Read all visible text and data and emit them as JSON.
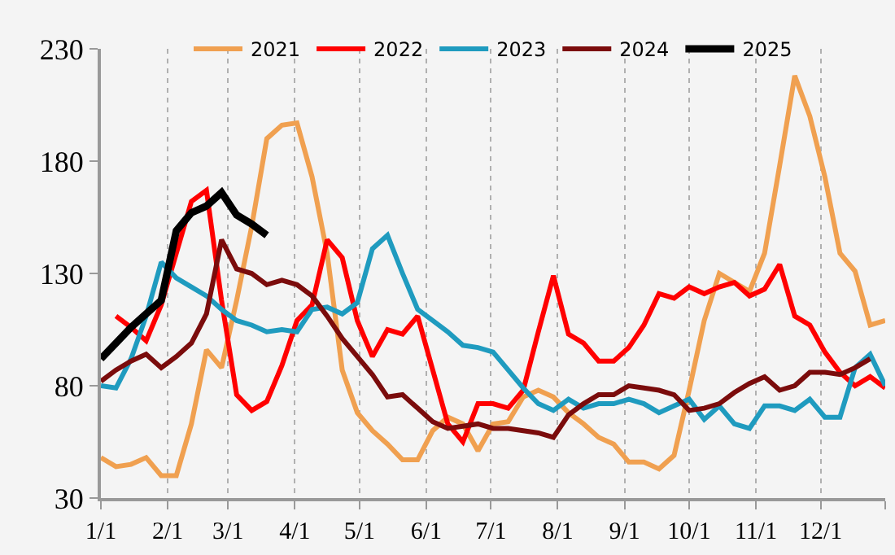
{
  "chart_data": {
    "type": "line",
    "x": [
      "--01-01",
      "--01-08",
      "--01-15",
      "--01-22",
      "--01-29",
      "--02-05",
      "--02-12",
      "--02-19",
      "--02-26",
      "--03-05",
      "--03-12",
      "--03-19",
      "--03-26",
      "--04-02",
      "--04-09",
      "--04-16",
      "--04-23",
      "--04-30",
      "--05-07",
      "--05-14",
      "--05-21",
      "--05-28",
      "--06-04",
      "--06-11",
      "--06-18",
      "--06-25",
      "--07-02",
      "--07-09",
      "--07-16",
      "--07-23",
      "--07-30",
      "--08-06",
      "--08-13",
      "--08-20",
      "--08-27",
      "--09-03",
      "--09-10",
      "--09-17",
      "--09-24",
      "--10-01",
      "--10-08",
      "--10-15",
      "--10-22",
      "--10-29",
      "--11-05",
      "--11-12",
      "--11-19",
      "--11-26",
      "--12-03",
      "--12-10",
      "--12-17",
      "--12-24",
      "--12-31"
    ],
    "series": [
      {
        "name": "2021",
        "color": "#f0a050",
        "values": [
          48,
          44,
          45,
          48,
          40,
          40,
          63,
          96,
          88,
          118,
          151,
          190,
          196,
          197,
          173,
          139,
          87,
          68,
          60,
          54,
          47,
          47,
          60,
          66,
          63,
          51,
          63,
          64,
          75,
          78,
          75,
          68,
          63,
          57,
          54,
          46,
          46,
          43,
          49,
          78,
          109,
          130,
          126,
          122,
          139,
          178,
          218,
          200,
          173,
          139,
          131,
          107,
          109
        ]
      },
      {
        "name": "2022",
        "color": "#ff0000",
        "values": [
          null,
          111,
          106,
          100,
          116,
          139,
          162,
          167,
          118,
          76,
          69,
          73,
          89,
          109,
          116,
          145,
          137,
          109,
          93,
          105,
          103,
          111,
          87,
          63,
          55,
          72,
          72,
          70,
          78,
          104,
          129,
          103,
          99,
          91,
          91,
          97,
          107,
          121,
          119,
          124,
          121,
          124,
          126,
          120,
          123,
          134,
          111,
          107,
          95,
          86,
          80,
          84,
          79
        ]
      },
      {
        "name": "2023",
        "color": "#1f9bbf",
        "values": [
          80,
          79,
          92,
          111,
          135,
          128,
          124,
          120,
          114,
          109,
          107,
          104,
          105,
          104,
          114,
          115,
          112,
          117,
          141,
          147,
          130,
          114,
          109,
          104,
          98,
          97,
          95,
          87,
          79,
          72,
          69,
          74,
          70,
          72,
          72,
          74,
          72,
          68,
          71,
          74,
          65,
          71,
          63,
          61,
          71,
          71,
          69,
          74,
          66,
          66,
          88,
          94,
          80
        ]
      },
      {
        "name": "2024",
        "color": "#7b0c0c",
        "values": [
          82,
          87,
          91,
          94,
          88,
          93,
          99,
          112,
          145,
          132,
          130,
          125,
          127,
          125,
          120,
          111,
          101,
          93,
          85,
          75,
          76,
          70,
          64,
          61,
          62,
          63,
          61,
          61,
          60,
          59,
          57,
          67,
          72,
          76,
          76,
          80,
          79,
          78,
          76,
          69,
          70,
          72,
          77,
          81,
          84,
          78,
          80,
          86,
          86,
          85,
          88,
          92,
          null
        ]
      },
      {
        "name": "2025",
        "color": "#000000",
        "values": [
          92,
          99,
          106,
          112,
          118,
          149,
          157,
          160,
          166,
          156,
          152,
          147,
          null,
          null,
          null,
          null,
          null,
          null,
          null,
          null,
          null,
          null,
          null,
          null,
          null,
          null,
          null,
          null,
          null,
          null,
          null,
          null,
          null,
          null,
          null,
          null,
          null,
          null,
          null,
          null,
          null,
          null,
          null,
          null,
          null,
          null,
          null,
          null,
          null,
          null,
          null,
          null,
          null
        ]
      }
    ],
    "xlim": [
      "--01-01",
      "--12-31"
    ],
    "xticks": [
      {
        "value": "--01-01",
        "label": "1/1"
      },
      {
        "value": "--02-01",
        "label": "2/1"
      },
      {
        "value": "--03-01",
        "label": "3/1"
      },
      {
        "value": "--04-01",
        "label": "4/1"
      },
      {
        "value": "--05-01",
        "label": "5/1"
      },
      {
        "value": "--06-01",
        "label": "6/1"
      },
      {
        "value": "--07-01",
        "label": "7/1"
      },
      {
        "value": "--08-01",
        "label": "8/1"
      },
      {
        "value": "--09-01",
        "label": "9/1"
      },
      {
        "value": "--10-01",
        "label": "10/1"
      },
      {
        "value": "--11-01",
        "label": "11/1"
      },
      {
        "value": "--12-01",
        "label": "12/1"
      },
      {
        "value": "--12-31",
        "label": null
      }
    ],
    "ylim": [
      30,
      230
    ],
    "yticks": [
      30,
      80,
      130,
      180,
      230
    ],
    "grid": "x",
    "legend": "top",
    "marker": "none",
    "line_style": "solid"
  }
}
